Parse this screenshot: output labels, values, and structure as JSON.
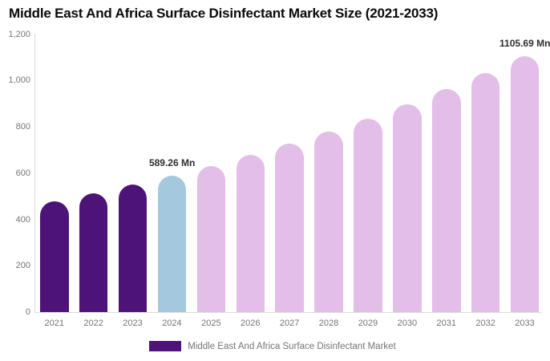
{
  "title": "Middle East And Africa Surface Disinfectant Market Size (2021-2033)",
  "legend": {
    "label": "Middle East And Africa Surface Disinfectant Market",
    "swatch_color": "#4E1378"
  },
  "colors": {
    "historical_bar": "#4E1378",
    "current_year_bar": "#A4C9DE",
    "forecast_bar": "#E3BEE8",
    "axis_line": "#DCDCDC",
    "tick_text": "#757575",
    "data_label_text": "#2E2E2E",
    "title_text": "#0A0A0A"
  },
  "chart_data": {
    "type": "bar",
    "title": "Middle East And Africa Surface Disinfectant Market Size (2021-2033)",
    "unit": "Mn",
    "categories": [
      "2021",
      "2022",
      "2023",
      "2024",
      "2025",
      "2026",
      "2027",
      "2028",
      "2029",
      "2030",
      "2031",
      "2032",
      "2033"
    ],
    "values": [
      477.7,
      512.4,
      549.5,
      589.26,
      632.0,
      677.7,
      726.8,
      779.5,
      835.9,
      896.5,
      961.4,
      1031.1,
      1105.69
    ],
    "bar_colors": [
      "#4E1378",
      "#4E1378",
      "#4E1378",
      "#A4C9DE",
      "#E3BEE8",
      "#E3BEE8",
      "#E3BEE8",
      "#E3BEE8",
      "#E3BEE8",
      "#E3BEE8",
      "#E3BEE8",
      "#E3BEE8",
      "#E3BEE8"
    ],
    "annotations": [
      {
        "category": "2024",
        "text": "589.26 Mn"
      },
      {
        "category": "2033",
        "text": "1105.69 Mn"
      }
    ],
    "xlabel": "",
    "ylabel": "",
    "ylim": [
      0,
      1200
    ],
    "ytick_labels": [
      "0",
      "200",
      "400",
      "600",
      "800",
      "1,000",
      "1,200"
    ],
    "grid": "off",
    "legend_position": "bottom",
    "legend_entries": [
      "Middle East And Africa Surface Disinfectant Market"
    ]
  }
}
